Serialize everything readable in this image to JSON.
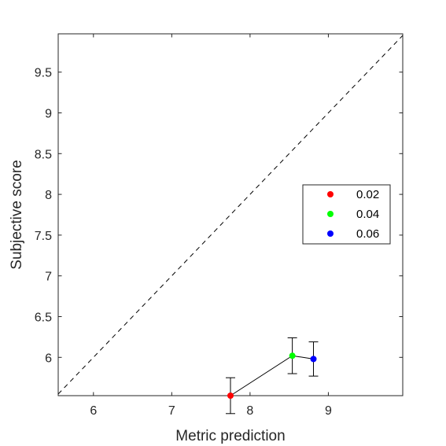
{
  "chart_data": {
    "type": "scatter",
    "xlabel": "Metric prediction",
    "ylabel": "Subjective score",
    "xlim": [
      5.55,
      9.95
    ],
    "ylim": [
      5.53,
      9.97
    ],
    "xticks": [
      6,
      7,
      8,
      9
    ],
    "yticks": [
      6,
      6.5,
      7,
      7.5,
      8,
      8.5,
      9,
      9.5
    ],
    "x_tick_labels": [
      "6",
      "7",
      "8",
      "9"
    ],
    "y_tick_labels": [
      "6",
      "6.5",
      "7",
      "7.5",
      "8",
      "8.5",
      "9",
      "9.5"
    ],
    "grid": false,
    "reference_line": {
      "style": "dashed",
      "relation": "y = x"
    },
    "connected": true,
    "legend_position": "right",
    "points": [
      {
        "name": "0.02",
        "x": 7.75,
        "y": 5.53,
        "err": 0.22,
        "color": "#ff0000"
      },
      {
        "name": "0.04",
        "x": 8.54,
        "y": 6.02,
        "err": 0.22,
        "color": "#00ff00"
      },
      {
        "name": "0.06",
        "x": 8.81,
        "y": 5.98,
        "err": 0.21,
        "color": "#0000ff"
      }
    ]
  }
}
